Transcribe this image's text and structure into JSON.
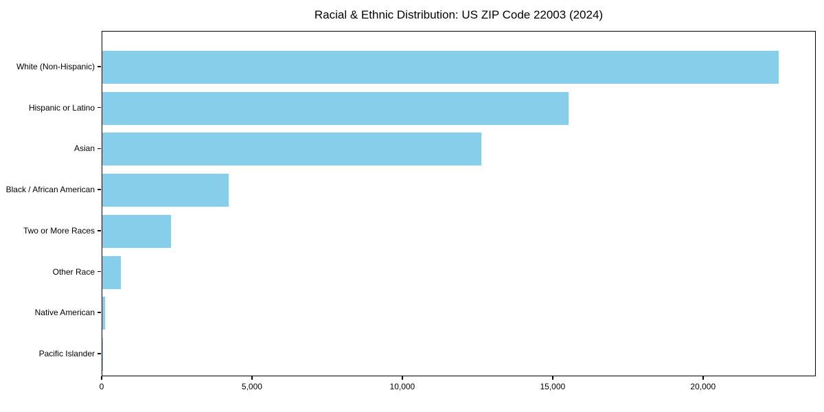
{
  "chart_data": {
    "type": "bar",
    "orientation": "horizontal",
    "title": "Racial & Ethnic Distribution: US ZIP Code 22003 (2024)",
    "xlabel": "",
    "ylabel": "",
    "categories": [
      "White (Non-Hispanic)",
      "Hispanic or Latino",
      "Asian",
      "Black / African American",
      "Two or More Races",
      "Other Race",
      "Native American",
      "Pacific Islander"
    ],
    "values": [
      22500,
      15500,
      12600,
      4200,
      2280,
      610,
      100,
      20
    ],
    "xlim": [
      0,
      23750
    ],
    "xticks": [
      0,
      5000,
      10000,
      15000,
      20000
    ],
    "xtick_labels": [
      "0",
      "5,000",
      "10,000",
      "15,000",
      "20,000"
    ],
    "bar_color": "#87CEEB",
    "grid": false,
    "legend_position": "none",
    "background_color": "#FFFFFF",
    "axis_color": "#000000"
  }
}
